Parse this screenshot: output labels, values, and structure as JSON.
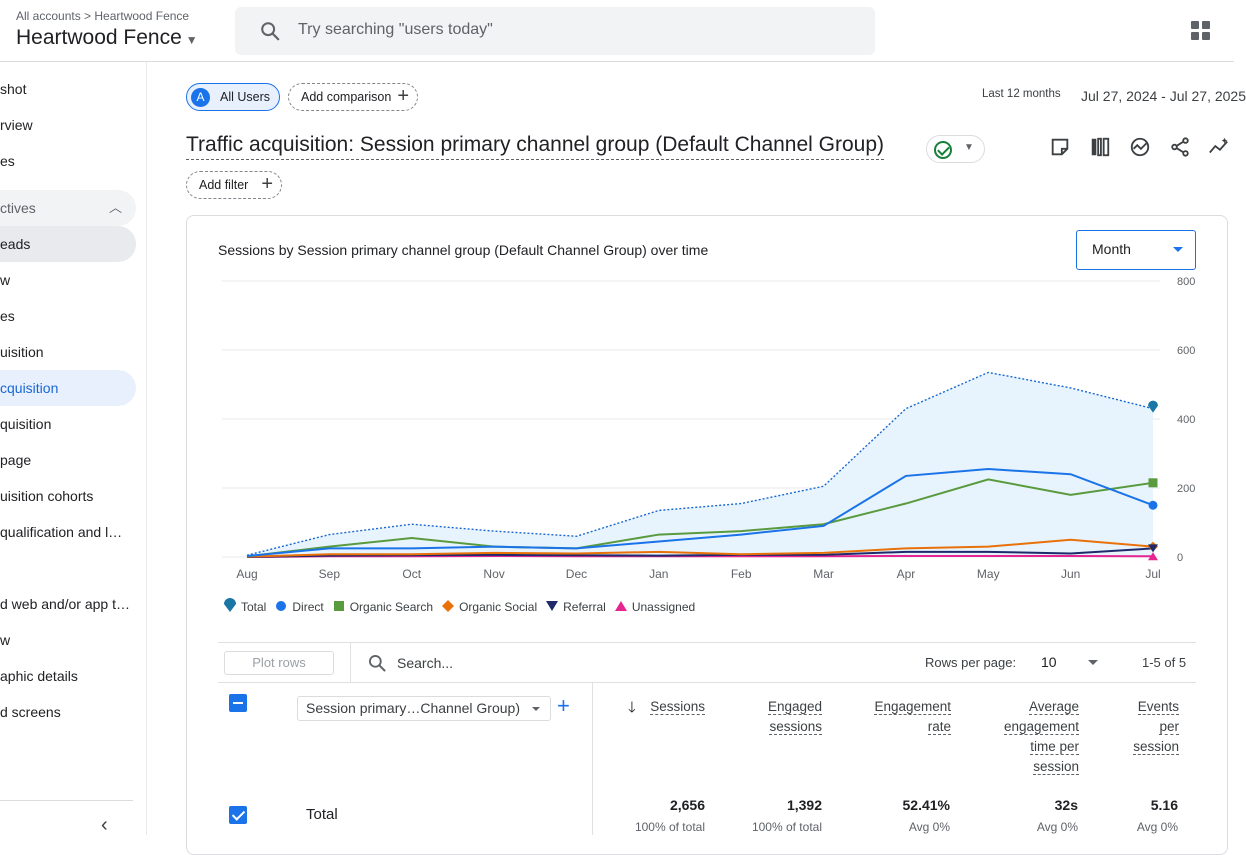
{
  "header": {
    "breadcrumb": "All accounts > Heartwood Fence",
    "account": "Heartwood Fence",
    "search_placeholder": "Try searching \"users today\""
  },
  "sidebar": {
    "items": [
      {
        "label": "shot"
      },
      {
        "label": "rview"
      },
      {
        "label": "es"
      },
      {
        "label": "ctives"
      },
      {
        "label": "eads"
      },
      {
        "label": "w"
      },
      {
        "label": "es"
      },
      {
        "label": "uisition"
      },
      {
        "label": "cquisition"
      },
      {
        "label": "quisition"
      },
      {
        "label": "page"
      },
      {
        "label": "uisition cohorts"
      },
      {
        "label": "qualification and l…"
      },
      {
        "label": "d web and/or app t…"
      },
      {
        "label": "w"
      },
      {
        "label": "aphic details"
      },
      {
        "label": "d screens"
      }
    ]
  },
  "comparison": {
    "all_users_initial": "A",
    "all_users": "All Users",
    "add_comparison": "Add comparison",
    "date_label": "Last 12 months",
    "date_range": "Jul 27, 2024 - Jul 27, 2025"
  },
  "report": {
    "title": "Traffic acquisition: Session primary channel group (Default Channel Group)",
    "add_filter": "Add filter"
  },
  "chart": {
    "title": "Sessions by Session primary channel group (Default Channel Group) over time",
    "granularity": "Month"
  },
  "chart_data": {
    "type": "line",
    "x": [
      "Aug",
      "Sep",
      "Oct",
      "Nov",
      "Dec",
      "Jan",
      "Feb",
      "Mar",
      "Apr",
      "May",
      "Jun",
      "Jul"
    ],
    "ylim": [
      0,
      800
    ],
    "yticks": [
      "0",
      "200",
      "400",
      "600",
      "800"
    ],
    "series": [
      {
        "name": "Total",
        "color": "#1a73e8",
        "values": [
          5,
          65,
          95,
          75,
          60,
          135,
          155,
          205,
          430,
          535,
          490,
          430
        ]
      },
      {
        "name": "Direct",
        "color": "#1a73e8",
        "values": [
          3,
          25,
          25,
          30,
          25,
          45,
          65,
          90,
          235,
          255,
          240,
          150
        ]
      },
      {
        "name": "Organic Search",
        "color": "#5a9a3e",
        "values": [
          2,
          30,
          55,
          30,
          25,
          65,
          75,
          95,
          155,
          225,
          180,
          215
        ]
      },
      {
        "name": "Organic Social",
        "color": "#e8710a",
        "values": [
          1,
          8,
          8,
          12,
          10,
          15,
          8,
          12,
          25,
          30,
          50,
          30
        ]
      },
      {
        "name": "Referral",
        "color": "#1f2a6b",
        "values": [
          0,
          4,
          5,
          6,
          5,
          4,
          6,
          6,
          15,
          15,
          10,
          25
        ]
      },
      {
        "name": "Unassigned",
        "color": "#e52592",
        "values": [
          0,
          2,
          2,
          3,
          2,
          2,
          2,
          2,
          3,
          3,
          3,
          2
        ]
      }
    ]
  },
  "table": {
    "plot_rows": "Plot rows",
    "search_placeholder": "Search...",
    "rows_per_page_label": "Rows per page:",
    "rows_per_page": "10",
    "pagination": "1-5 of 5",
    "dimension": "Session primary…Channel Group)",
    "columns": [
      {
        "l1": "Sessions",
        "l2": "",
        "l3": "",
        "l4": ""
      },
      {
        "l1": "Engaged",
        "l2": "sessions",
        "l3": "",
        "l4": ""
      },
      {
        "l1": "Engagement",
        "l2": "rate",
        "l3": "",
        "l4": ""
      },
      {
        "l1": "Average",
        "l2": "engagement",
        "l3": "time per",
        "l4": "session"
      },
      {
        "l1": "Events",
        "l2": "per",
        "l3": "session",
        "l4": ""
      }
    ],
    "total": {
      "label": "Total",
      "values": [
        "2,656",
        "1,392",
        "52.41%",
        "32s",
        "5.16"
      ],
      "subs": [
        "100% of total",
        "100% of total",
        "Avg 0%",
        "Avg 0%",
        "Avg 0%"
      ]
    }
  }
}
